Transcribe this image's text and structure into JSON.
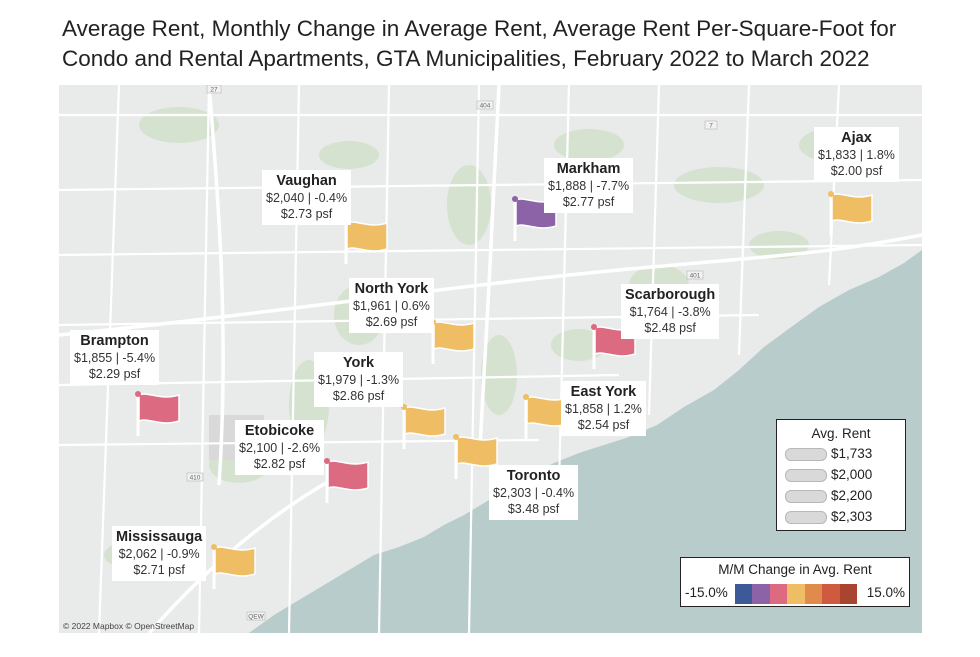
{
  "title": {
    "line1": "Average Rent, Monthly Change in Average Rent, Average Rent Per-Square-Foot for",
    "line2": "Condo and Rental Apartments, GTA Municipalities, February 2022 to March 2022"
  },
  "map": {
    "credit": "© 2022 Mapbox © OpenStreetMap",
    "road_shields": [
      "27",
      "404",
      "7",
      "401",
      "410",
      "QEW"
    ],
    "colors": {
      "land": "#e9eaea",
      "water": "#b8cccb",
      "roads": "#ffffff",
      "parks": "#d6e2d0"
    }
  },
  "municipalities": [
    {
      "name": "Vaughan",
      "rent_line": "$2,040 | -0.4%",
      "psf": "$2.73 psf",
      "avg_rent": 2040,
      "mm_change_pct": -0.4,
      "flag_color": "#eebd64"
    },
    {
      "name": "Markham",
      "rent_line": "$1,888 | -7.7%",
      "psf": "$2.77 psf",
      "avg_rent": 1888,
      "mm_change_pct": -7.7,
      "flag_color": "#8b63a6"
    },
    {
      "name": "Ajax",
      "rent_line": "$1,833 | 1.8%",
      "psf": "$2.00 psf",
      "avg_rent": 1833,
      "mm_change_pct": 1.8,
      "flag_color": "#eebd64"
    },
    {
      "name": "North York",
      "rent_line": "$1,961 | 0.6%",
      "psf": "$2.69 psf",
      "avg_rent": 1961,
      "mm_change_pct": 0.6,
      "flag_color": "#eebd64"
    },
    {
      "name": "Scarborough",
      "rent_line": "$1,764 | -3.8%",
      "psf": "$2.48 psf",
      "avg_rent": 1764,
      "mm_change_pct": -3.8,
      "flag_color": "#dc6b82"
    },
    {
      "name": "Brampton",
      "rent_line": "$1,855 | -5.4%",
      "psf": "$2.29 psf",
      "avg_rent": 1855,
      "mm_change_pct": -5.4,
      "flag_color": "#dc6b82"
    },
    {
      "name": "York",
      "rent_line": "$1,979 | -1.3%",
      "psf": "$2.86 psf",
      "avg_rent": 1979,
      "mm_change_pct": -1.3,
      "flag_color": "#eebd64"
    },
    {
      "name": "East York",
      "rent_line": "$1,858 | 1.2%",
      "psf": "$2.54 psf",
      "avg_rent": 1858,
      "mm_change_pct": 1.2,
      "flag_color": "#eebd64"
    },
    {
      "name": "Etobicoke",
      "rent_line": "$2,100 | -2.6%",
      "psf": "$2.82 psf",
      "avg_rent": 2100,
      "mm_change_pct": -2.6,
      "flag_color": "#dc6b82"
    },
    {
      "name": "Toronto",
      "rent_line": "$2,303 | -0.4%",
      "psf": "$3.48 psf",
      "avg_rent": 2303,
      "mm_change_pct": -0.4,
      "flag_color": "#eebd64"
    },
    {
      "name": "Mississauga",
      "rent_line": "$2,062 | -0.9%",
      "psf": "$2.71 psf",
      "avg_rent": 2062,
      "mm_change_pct": -0.9,
      "flag_color": "#eebd64"
    }
  ],
  "legend_rent": {
    "title": "Avg. Rent",
    "items": [
      "$1,733",
      "$2,000",
      "$2,200",
      "$2,303"
    ]
  },
  "legend_change": {
    "title": "M/M Change in Avg. Rent",
    "min_label": "-15.0%",
    "max_label": "15.0%",
    "ramp_colors": [
      "#3d5a98",
      "#8b63a6",
      "#dc6b82",
      "#eebd64",
      "#e08a4c",
      "#cf5a3f",
      "#a8442f"
    ]
  }
}
